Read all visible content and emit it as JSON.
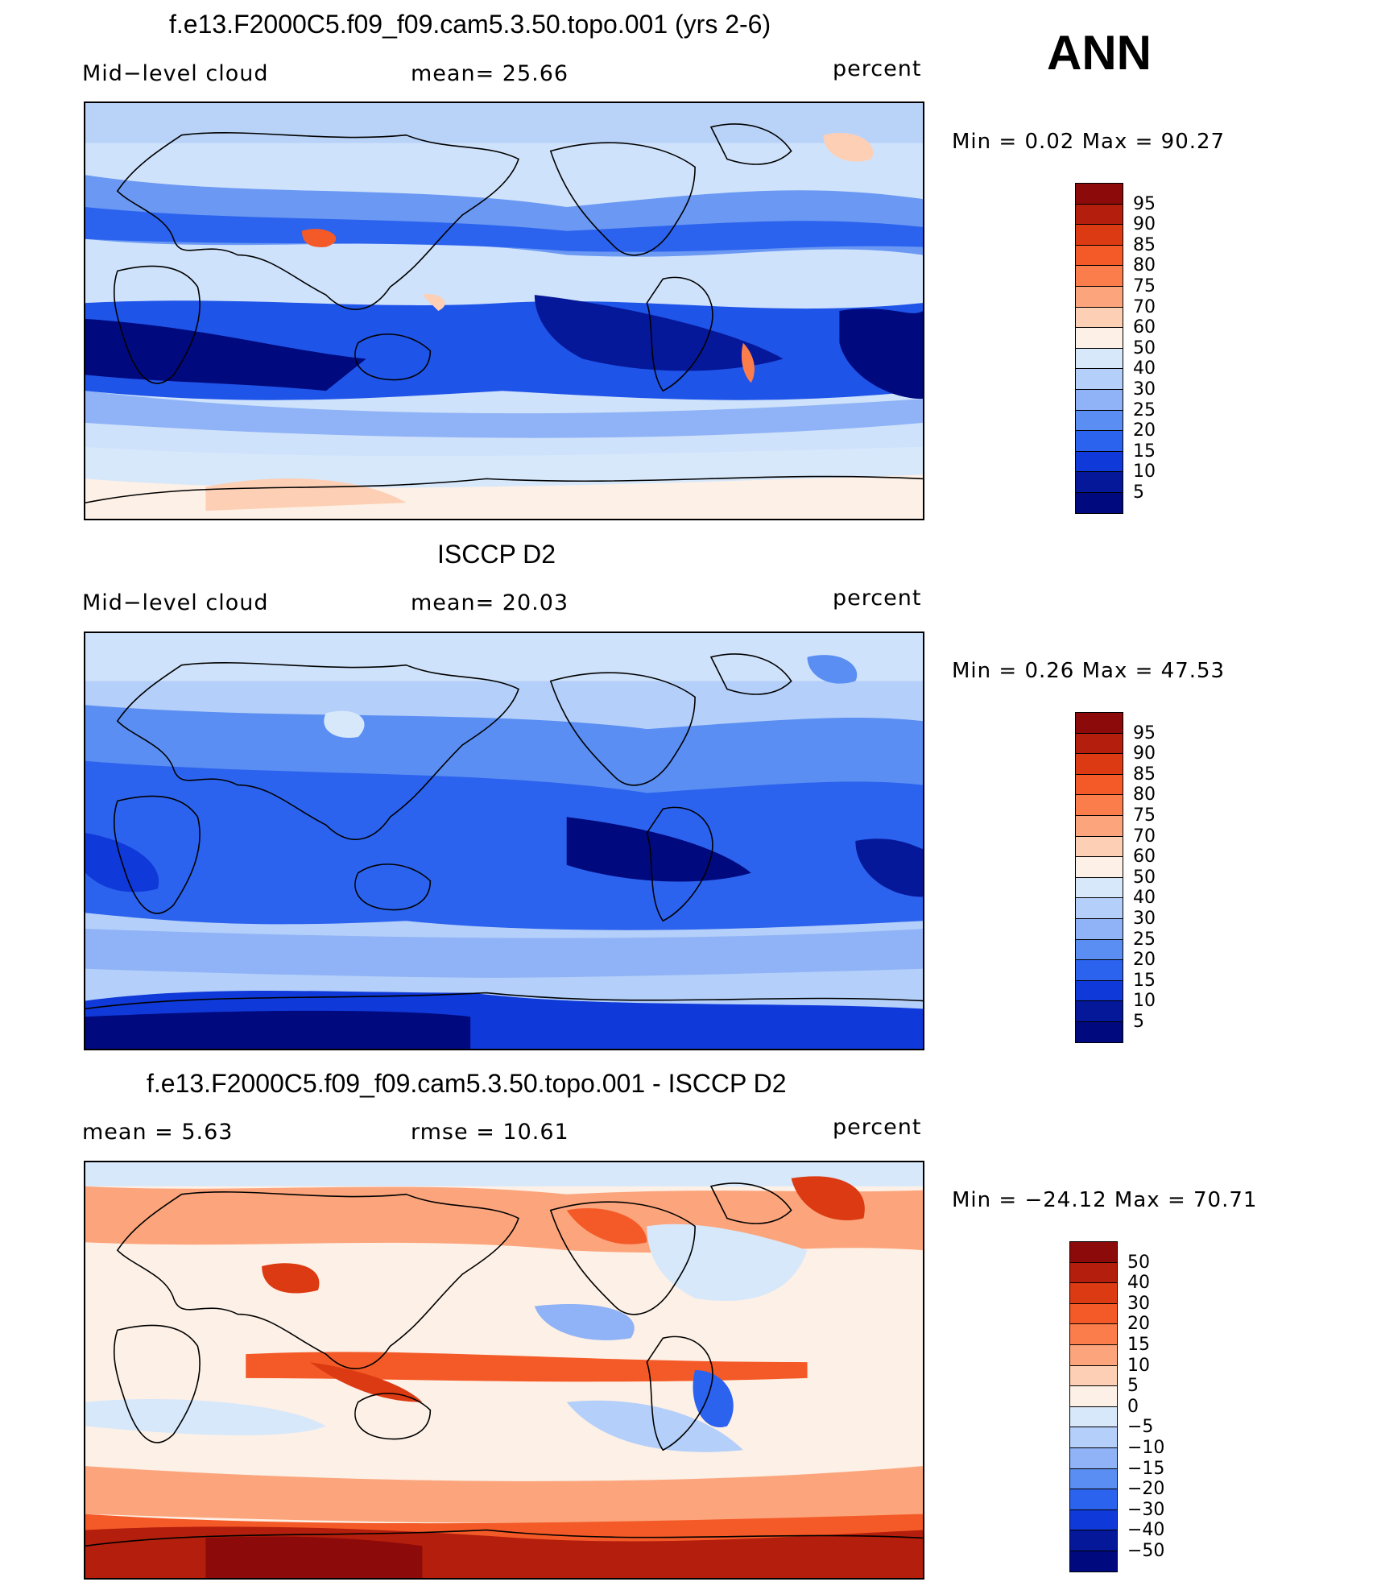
{
  "header": {
    "season": "ANN"
  },
  "panels": [
    {
      "id": "model",
      "title": "f.e13.F2000C5.f09_f09.cam5.3.50.topo.001 (yrs 2-6)",
      "left_label": "Mid−level cloud",
      "center_label": "mean=  25.66",
      "units": "percent",
      "minmax": "Min  =    0.02  Max  =   90.27",
      "colorbar_labels": [
        "95",
        "90",
        "85",
        "80",
        "75",
        "70",
        "60",
        "50",
        "40",
        "30",
        "25",
        "20",
        "15",
        "10",
        "5"
      ],
      "colorbar_colors": [
        "#8c0a0a",
        "#b41e0c",
        "#dc3a12",
        "#f45a28",
        "#fb7d4c",
        "#fca57c",
        "#fdcfb4",
        "#fdf0e6",
        "#d7e8fb",
        "#b4cff9",
        "#8fb3f6",
        "#5a8ef2",
        "#2c63ee",
        "#1039d9",
        "#06189a",
        "#000a7e"
      ],
      "colormap": "cool-blue-to-warm-red",
      "dominant_color": "#1f54e8"
    },
    {
      "id": "obs",
      "title": "ISCCP D2",
      "left_label": "Mid−level cloud",
      "center_label": "mean=  20.03",
      "units": "percent",
      "minmax": "Min  =    0.26  Max  =   47.53",
      "colorbar_labels": [
        "95",
        "90",
        "85",
        "80",
        "75",
        "70",
        "60",
        "50",
        "40",
        "30",
        "25",
        "20",
        "15",
        "10",
        "5"
      ],
      "colorbar_colors": [
        "#8c0a0a",
        "#b41e0c",
        "#dc3a12",
        "#f45a28",
        "#fb7d4c",
        "#fca57c",
        "#fdcfb4",
        "#fdf0e6",
        "#d7e8fb",
        "#b4cff9",
        "#8fb3f6",
        "#5a8ef2",
        "#2c63ee",
        "#1039d9",
        "#06189a",
        "#000a7e"
      ],
      "colormap": "cool-blue-to-warm-red",
      "dominant_color": "#2350e0"
    },
    {
      "id": "diff",
      "title": "f.e13.F2000C5.f09_f09.cam5.3.50.topo.001 - ISCCP D2",
      "left_label": "mean  =    5.63",
      "center_label": "rmse  =   10.61",
      "units": "percent",
      "minmax": "Min  = −24.12  Max  =   70.71",
      "colorbar_labels": [
        "50",
        "40",
        "30",
        "20",
        "15",
        "10",
        "5",
        "0",
        "−5",
        "−10",
        "−15",
        "−20",
        "−30",
        "−40",
        "−50"
      ],
      "colorbar_colors": [
        "#8c0a0a",
        "#b41e0c",
        "#dc3a12",
        "#f45a28",
        "#fb7d4c",
        "#fca57c",
        "#fdcfb4",
        "#fdf0e6",
        "#d7e8fb",
        "#b4cff9",
        "#8fb3f6",
        "#5a8ef2",
        "#2c63ee",
        "#1039d9",
        "#06189a",
        "#000a7e"
      ],
      "colormap": "cool-blue-to-warm-red",
      "dominant_color": "#fbd0b8"
    }
  ]
}
